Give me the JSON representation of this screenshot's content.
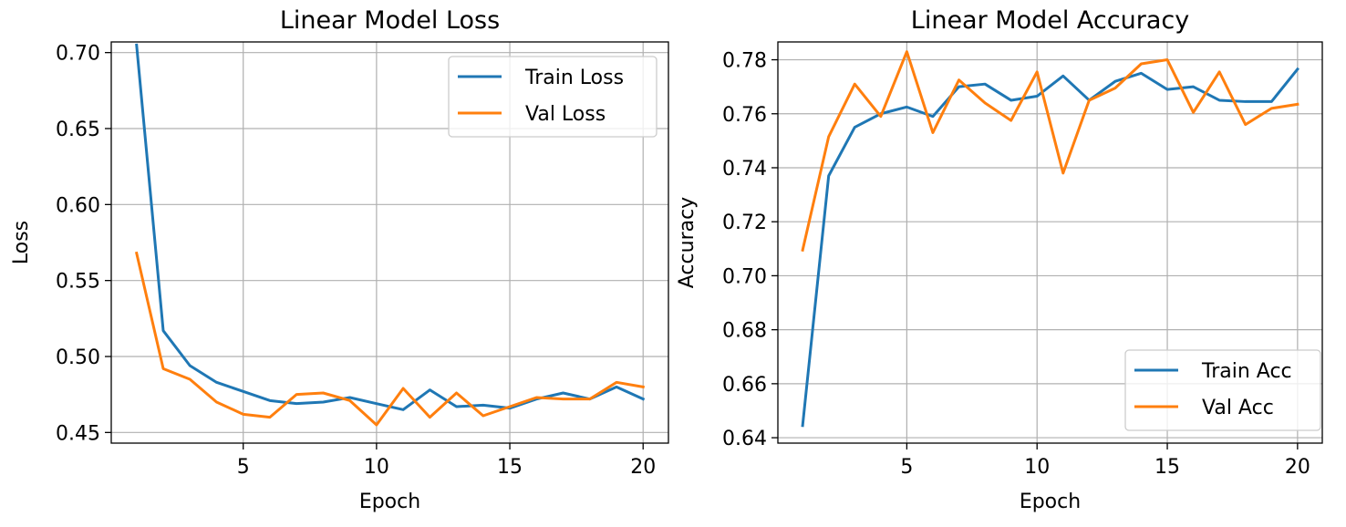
{
  "chart_data": [
    {
      "type": "line",
      "title": "Linear Model Loss",
      "xlabel": "Epoch",
      "ylabel": "Loss",
      "x": [
        1,
        2,
        3,
        4,
        5,
        6,
        7,
        8,
        9,
        10,
        11,
        12,
        13,
        14,
        15,
        16,
        17,
        18,
        19,
        20
      ],
      "xlim": [
        0.05,
        20.95
      ],
      "ylim": [
        0.443,
        0.707
      ],
      "xticks": [
        5,
        10,
        15,
        20
      ],
      "xtick_labels": [
        "5",
        "10",
        "15",
        "20"
      ],
      "yticks": [
        0.45,
        0.5,
        0.55,
        0.6,
        0.65,
        0.7
      ],
      "ytick_labels": [
        "0.45",
        "0.50",
        "0.55",
        "0.60",
        "0.65",
        "0.70"
      ],
      "grid": true,
      "legend_position": "top-right",
      "series": [
        {
          "name": "Train Loss",
          "color": "#1f77b4",
          "values": [
            0.705,
            0.517,
            0.494,
            0.483,
            0.477,
            0.471,
            0.469,
            0.47,
            0.473,
            0.469,
            0.465,
            0.478,
            0.467,
            0.468,
            0.466,
            0.472,
            0.476,
            0.472,
            0.48,
            0.472
          ]
        },
        {
          "name": "Val Loss",
          "color": "#ff7f0e",
          "values": [
            0.568,
            0.492,
            0.485,
            0.47,
            0.462,
            0.46,
            0.475,
            0.476,
            0.471,
            0.455,
            0.479,
            0.46,
            0.476,
            0.461,
            0.467,
            0.473,
            0.472,
            0.472,
            0.483,
            0.48
          ]
        }
      ]
    },
    {
      "type": "line",
      "title": "Linear Model Accuracy",
      "xlabel": "Epoch",
      "ylabel": "Accuracy",
      "x": [
        1,
        2,
        3,
        4,
        5,
        6,
        7,
        8,
        9,
        10,
        11,
        12,
        13,
        14,
        15,
        16,
        17,
        18,
        19,
        20
      ],
      "xlim": [
        0.05,
        20.95
      ],
      "ylim": [
        0.638,
        0.7866
      ],
      "xticks": [
        5,
        10,
        15,
        20
      ],
      "xtick_labels": [
        "5",
        "10",
        "15",
        "20"
      ],
      "yticks": [
        0.64,
        0.66,
        0.68,
        0.7,
        0.72,
        0.74,
        0.76,
        0.78
      ],
      "ytick_labels": [
        "0.64",
        "0.66",
        "0.68",
        "0.70",
        "0.72",
        "0.74",
        "0.76",
        "0.78"
      ],
      "grid": true,
      "legend_position": "bottom-right",
      "series": [
        {
          "name": "Train Acc",
          "color": "#1f77b4",
          "values": [
            0.6445,
            0.737,
            0.755,
            0.76,
            0.7625,
            0.759,
            0.77,
            0.771,
            0.765,
            0.7665,
            0.774,
            0.765,
            0.772,
            0.775,
            0.769,
            0.77,
            0.765,
            0.7645,
            0.7645,
            0.7765
          ]
        },
        {
          "name": "Val Acc",
          "color": "#ff7f0e",
          "values": [
            0.7095,
            0.7515,
            0.771,
            0.759,
            0.783,
            0.753,
            0.7725,
            0.764,
            0.7575,
            0.7755,
            0.738,
            0.765,
            0.7695,
            0.7785,
            0.78,
            0.7605,
            0.7755,
            0.756,
            0.762,
            0.7635
          ]
        }
      ]
    }
  ]
}
